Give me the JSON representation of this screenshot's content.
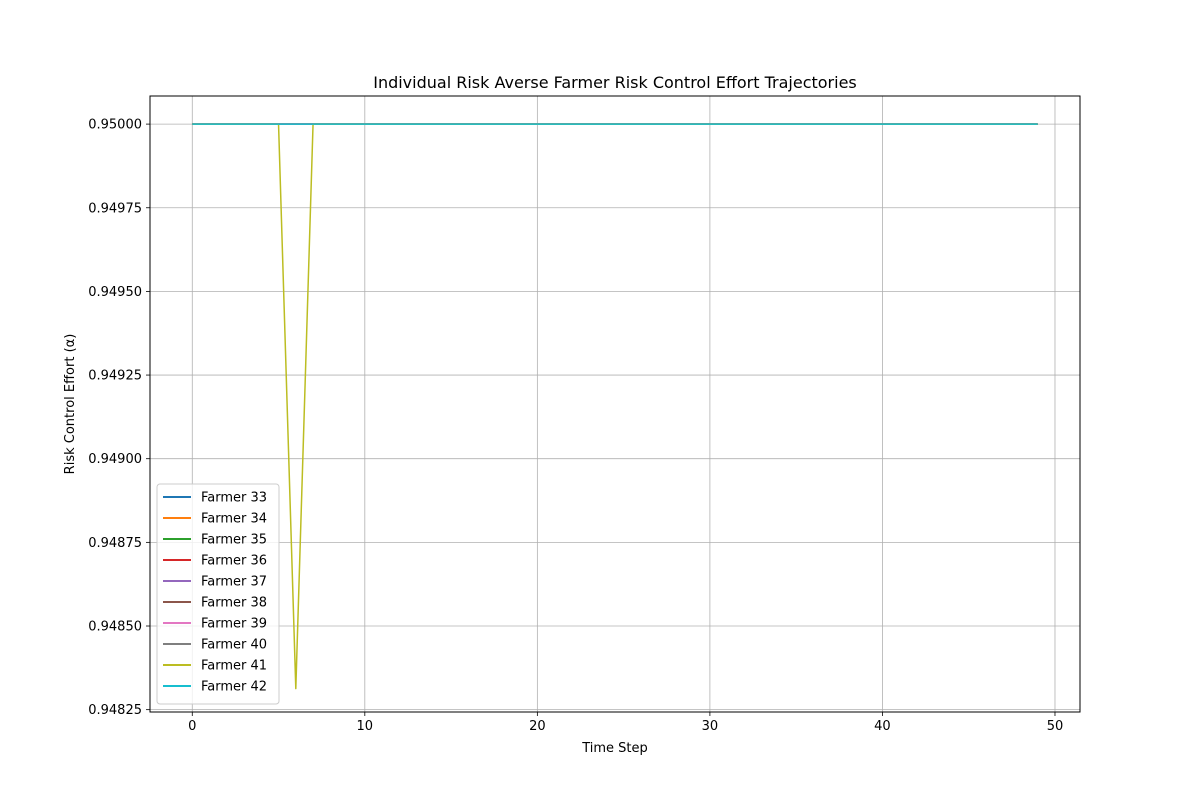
{
  "chart_data": {
    "type": "line",
    "title": "Individual Risk Averse Farmer Risk Control Effort Trajectories",
    "xlabel": "Time Step",
    "ylabel": "Risk Control Effort (α)",
    "xlim": [
      -2.45,
      51.45
    ],
    "ylim": [
      0.948243,
      0.950084
    ],
    "xticks": [
      0,
      10,
      20,
      30,
      40,
      50
    ],
    "xtick_labels": [
      "0",
      "10",
      "20",
      "30",
      "40",
      "50"
    ],
    "yticks": [
      0.94825,
      0.9485,
      0.94875,
      0.949,
      0.94925,
      0.9495,
      0.94975,
      0.95
    ],
    "ytick_labels": [
      "0.94825",
      "0.94850",
      "0.94875",
      "0.94900",
      "0.94925",
      "0.94950",
      "0.94975",
      "0.95000"
    ],
    "grid": true,
    "legend_position": "lower-left",
    "x_range": [
      0,
      49
    ],
    "baseline": 0.95,
    "series": [
      {
        "name": "Farmer 33",
        "color": "#1f77b4",
        "dips": []
      },
      {
        "name": "Farmer 34",
        "color": "#ff7f0e",
        "dips": []
      },
      {
        "name": "Farmer 35",
        "color": "#2ca02c",
        "dips": []
      },
      {
        "name": "Farmer 36",
        "color": "#d62728",
        "dips": []
      },
      {
        "name": "Farmer 37",
        "color": "#9467bd",
        "dips": []
      },
      {
        "name": "Farmer 38",
        "color": "#8c564b",
        "dips": []
      },
      {
        "name": "Farmer 39",
        "color": "#e377c2",
        "dips": []
      },
      {
        "name": "Farmer 40",
        "color": "#7f7f7f",
        "dips": []
      },
      {
        "name": "Farmer 41",
        "color": "#bcbd22",
        "dips": [
          {
            "x": 6,
            "y": 0.948313
          }
        ]
      },
      {
        "name": "Farmer 42",
        "color": "#17becf",
        "dips": []
      }
    ]
  }
}
